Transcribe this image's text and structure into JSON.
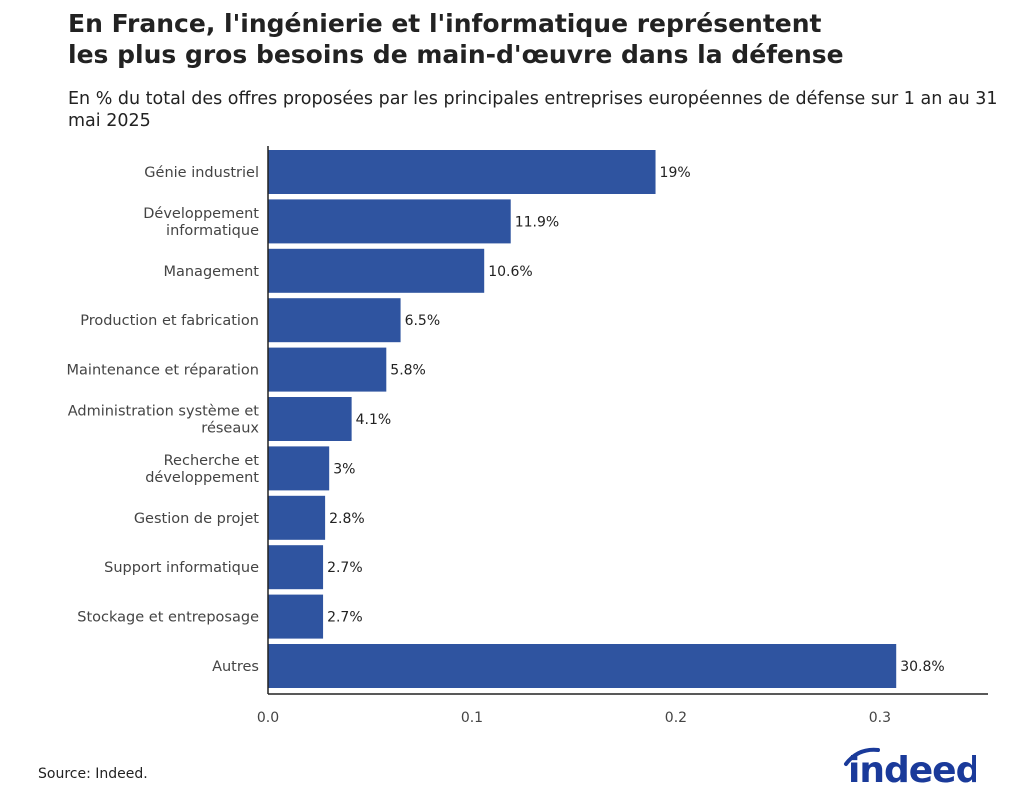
{
  "title_line1": "En France, l'ingénierie et l'informatique représentent",
  "title_line2": "les plus gros besoins de main-d'œuvre dans la défense",
  "subtitle": "En % du total des offres proposées par les principales entreprises européennes de défense sur 1 an au 31 mai 2025",
  "source": "Source: Indeed.",
  "logo_text": "indeed",
  "chart_data": {
    "type": "bar",
    "orientation": "horizontal",
    "categories": [
      [
        "Génie industriel"
      ],
      [
        "Développement",
        "informatique"
      ],
      [
        "Management"
      ],
      [
        "Production et fabrication"
      ],
      [
        "Maintenance et réparation"
      ],
      [
        "Administration système et",
        "réseaux"
      ],
      [
        "Recherche et",
        "développement"
      ],
      [
        "Gestion de projet"
      ],
      [
        "Support informatique"
      ],
      [
        "Stockage et entreposage"
      ],
      [
        "Autres"
      ]
    ],
    "values": [
      0.19,
      0.119,
      0.106,
      0.065,
      0.058,
      0.041,
      0.03,
      0.028,
      0.027,
      0.027,
      0.308
    ],
    "data_labels": [
      "19%",
      "11.9%",
      "10.6%",
      "6.5%",
      "5.8%",
      "4.1%",
      "3%",
      "2.8%",
      "2.7%",
      "2.7%",
      "30.8%"
    ],
    "xlim": [
      0,
      0.353
    ],
    "xticks": [
      "0.0",
      "0.1",
      "0.2",
      "0.3"
    ],
    "xtick_values": [
      0,
      0.1,
      0.2,
      0.3
    ],
    "grid": false,
    "bar_color": "#2f54a0"
  }
}
